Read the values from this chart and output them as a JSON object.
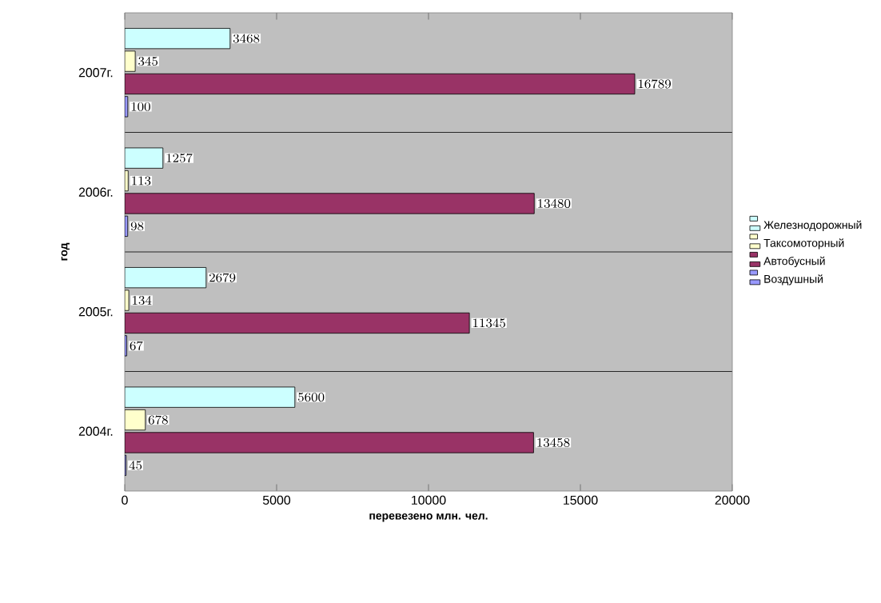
{
  "chart_data": {
    "type": "bar",
    "orientation": "horizontal",
    "xlabel": "перевезено млн. чел.",
    "ylabel": "год",
    "categories": [
      "2007г.",
      "2006г.",
      "2005г.",
      "2004г."
    ],
    "series": [
      {
        "name": "Железнодорожный",
        "color": "#ccffff",
        "values": [
          3468,
          1257,
          2679,
          5600
        ]
      },
      {
        "name": "Таксомоторный",
        "color": "#ffffcc",
        "values": [
          345,
          113,
          134,
          678
        ]
      },
      {
        "name": "Автобусный",
        "color": "#993366",
        "values": [
          16789,
          13480,
          11345,
          13458
        ]
      },
      {
        "name": "Воздушный",
        "color": "#9999ff",
        "values": [
          100,
          98,
          67,
          45
        ]
      }
    ],
    "xlim": [
      0,
      20000
    ],
    "xticks": [
      0,
      5000,
      10000,
      15000,
      20000
    ],
    "grid": "y",
    "legend": "right",
    "data_labels": true
  }
}
